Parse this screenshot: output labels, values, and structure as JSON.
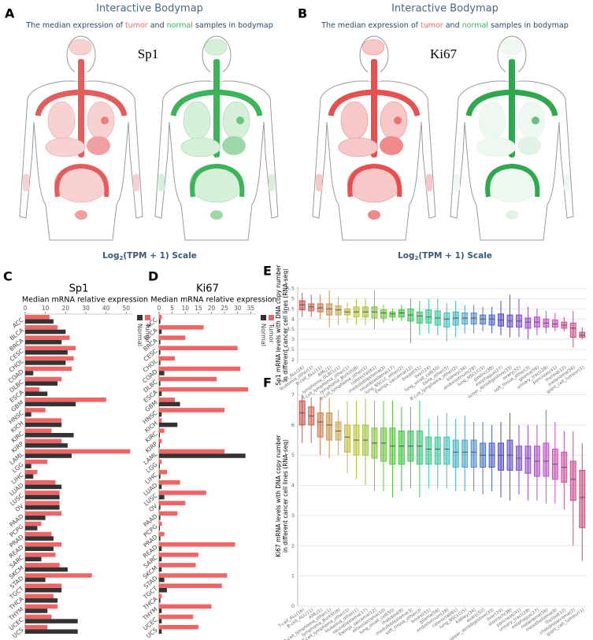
{
  "panels": [
    {
      "letter": "A",
      "title": "Interactive Bodymap",
      "subtitle": [
        "The median expression of ",
        "tumor",
        " and ",
        "normal",
        " samples in bodymap"
      ],
      "gene": "Sp1",
      "scale": [
        "Log",
        "2",
        "(TPM + 1) Scale"
      ]
    },
    {
      "letter": "B",
      "title": "Interactive Bodymap",
      "subtitle": [
        "The median expression of ",
        "tumor",
        " and ",
        "normal",
        " samples in bodymap"
      ],
      "gene": "Ki67",
      "scale": [
        "Log",
        "2",
        "(TPM + 1) Scale"
      ]
    }
  ],
  "chart_data": [
    {
      "type": "bar",
      "orientation": "horizontal",
      "letter": "C",
      "title": "Sp1",
      "subtitle": "Median mRNA relative expression",
      "categories": [
        "ACC",
        "BLCA",
        "BRCA",
        "CESC",
        "CHOL",
        "COAD",
        "DLBC",
        "ESCA",
        "GBM",
        "HNSC",
        "KICH",
        "KIRC",
        "KIRP",
        "LAML",
        "LGG",
        "LIHC",
        "LUAD",
        "LUSC",
        "OV",
        "PAAD",
        "PCPG",
        "PRAD",
        "READ",
        "SARC",
        "SKCM",
        "STAD",
        "TGCT",
        "THCA",
        "THYM",
        "UCEC",
        "UCS"
      ],
      "series": [
        {
          "name": "Tumor",
          "color": "#f06464",
          "values": [
            12,
            16,
            22,
            25,
            24,
            23,
            18,
            7,
            40,
            10,
            18,
            13,
            18,
            52,
            11,
            6,
            15,
            17,
            17,
            18,
            8,
            13,
            18,
            15,
            17,
            33,
            18,
            14,
            16,
            13,
            11
          ]
        },
        {
          "name": "Normal",
          "color": "#333333",
          "values": [
            14,
            20,
            18,
            21,
            20,
            4,
            16,
            11,
            25,
            3,
            18,
            24,
            21,
            23,
            3,
            4,
            18,
            17,
            17,
            10,
            6,
            14,
            14,
            8,
            21,
            10,
            18,
            16,
            11,
            26,
            26
          ]
        }
      ],
      "xlim": [
        0,
        53
      ],
      "xticks": [
        0,
        10,
        20,
        30,
        40,
        50
      ]
    },
    {
      "type": "bar",
      "orientation": "horizontal",
      "letter": "D",
      "title": "Ki67",
      "subtitle": "Median mRNA relative expression",
      "categories": [
        "ACC",
        "BLCA",
        "BRCA",
        "CESC",
        "CHOL",
        "COAD",
        "DLBC",
        "ESCA",
        "GBM",
        "HNSC",
        "KICH",
        "KIRC",
        "KIRP",
        "LAML",
        "LGG",
        "LIHC",
        "LUAD",
        "LUSC",
        "OV",
        "PAAD",
        "PCPG",
        "PRAD",
        "READ",
        "SARC",
        "SKCM",
        "STAD",
        "TGCT",
        "THCA",
        "THYM",
        "UCEC",
        "UCS"
      ],
      "series": [
        {
          "name": "Tumor",
          "color": "#f06464",
          "values": [
            1,
            17,
            10,
            30,
            6,
            31,
            22,
            34,
            6,
            25,
            1,
            2,
            1,
            25,
            1,
            3,
            8,
            18,
            10,
            7,
            1,
            2,
            29,
            15,
            14,
            26,
            24,
            1,
            20,
            13,
            15
          ]
        },
        {
          "name": "Normal",
          "color": "#333333",
          "values": [
            0.5,
            1,
            0.5,
            0.5,
            0.5,
            2,
            0.5,
            1,
            8,
            1,
            7,
            0.3,
            0.3,
            33,
            0.3,
            0.5,
            1,
            2,
            0.5,
            0.5,
            0.3,
            0.5,
            1,
            1,
            1,
            2,
            3,
            0.5,
            1,
            1,
            1
          ]
        }
      ],
      "xlim": [
        0,
        37
      ],
      "xticks": [
        0,
        5,
        10,
        15,
        20,
        25,
        30,
        35
      ]
    },
    {
      "type": "box",
      "letter": "E",
      "ylabel": [
        "Sp1 mRNA levels with DNA copy number",
        "in different cancer cell lines (RNA-seq)"
      ],
      "categories": [
        "T-cell_ALL(16)",
        "leukemia_other(1)",
        "B-cell_ALL(11)",
        "AML(1)",
        "lymphoma_DLBCL(1)",
        "T-cell_lymphoma_other(1)",
        "lymphoma_Burkitt(8)",
        "B-cell_lymphoma_other(1)",
        "colorectal(61)",
        "medulloblastoma(3)",
        "neuroblastoma(17)",
        "lung_NSCLC_other(2)",
        "Ewings_sarcoma(12)",
        "breast(51)",
        "liver(24)",
        "lung_small_cell(50)",
        "bone_other(5)",
        "B-cell_lymphoma_other(2)",
        "kidney(34)",
        "endometrium(28)",
        "lung_NSCLC(5)",
        "gastric(38)",
        "esophagus(27)",
        "upper_aerodigestive(33)",
        "ovary(52)",
        "soft_tissue_other(3)",
        "glioma(56)",
        "urinary_tract(28)",
        "pancreas(41)",
        "thyroid(12)",
        "melanoma(56)",
        "giant_cell_tumour(1)"
      ],
      "colors": [
        "hsl(0,55%,55%)",
        "hsl(11,55%,55%)",
        "hsl(22,55%,55%)",
        "hsl(33,55%,55%)",
        "hsl(44,55%,55%)",
        "hsl(55,55%,50%)",
        "hsl(66,55%,50%)",
        "hsl(77,55%,50%)",
        "hsl(88,55%,50%)",
        "hsl(99,55%,50%)",
        "hsl(110,55%,50%)",
        "hsl(121,55%,50%)",
        "hsl(132,55%,50%)",
        "hsl(143,55%,50%)",
        "hsl(154,55%,50%)",
        "hsl(165,55%,50%)",
        "hsl(176,55%,50%)",
        "hsl(187,55%,50%)",
        "hsl(198,55%,55%)",
        "hsl(209,55%,55%)",
        "hsl(220,55%,55%)",
        "hsl(231,55%,55%)",
        "hsl(242,55%,55%)",
        "hsl(253,55%,55%)",
        "hsl(264,55%,55%)",
        "hsl(275,55%,55%)",
        "hsl(286,55%,55%)",
        "hsl(297,55%,55%)",
        "hsl(308,55%,55%)",
        "hsl(319,55%,55%)",
        "hsl(330,55%,55%)",
        "hsl(341,55%,55%)"
      ],
      "low": [
        4.1,
        4.1,
        4.0,
        3.6,
        3.7,
        3.8,
        3.7,
        3.7,
        3.5,
        3.8,
        3.9,
        3.9,
        2.8,
        3.2,
        3.3,
        3.2,
        2.9,
        3.1,
        3.3,
        3.3,
        3.4,
        3.3,
        3.2,
        3.1,
        3.1,
        3.0,
        3.2,
        3.3,
        3.4,
        3.4,
        2.6,
        3.0
      ],
      "q1": [
        4.45,
        4.4,
        4.35,
        4.2,
        4.2,
        4.2,
        4.1,
        4.1,
        4.05,
        4.05,
        4.1,
        4.1,
        3.9,
        3.8,
        3.8,
        3.7,
        3.6,
        3.7,
        3.75,
        3.75,
        3.75,
        3.7,
        3.65,
        3.6,
        3.6,
        3.55,
        3.6,
        3.6,
        3.6,
        3.55,
        3.1,
        3.1
      ],
      "median": [
        4.7,
        4.6,
        4.55,
        4.5,
        4.45,
        4.35,
        4.35,
        4.35,
        4.35,
        4.3,
        4.25,
        4.3,
        4.2,
        4.15,
        4.1,
        4.05,
        4.0,
        4.05,
        4.05,
        4.05,
        4.0,
        4.0,
        3.95,
        3.9,
        3.9,
        3.85,
        3.85,
        3.8,
        3.75,
        3.7,
        3.55,
        3.2
      ],
      "q3": [
        4.9,
        4.75,
        4.75,
        4.75,
        4.65,
        4.5,
        4.6,
        4.6,
        4.6,
        4.45,
        4.35,
        4.45,
        4.5,
        4.35,
        4.45,
        4.4,
        4.3,
        4.35,
        4.3,
        4.3,
        4.2,
        4.2,
        4.25,
        4.2,
        4.2,
        4.05,
        4.1,
        4.0,
        3.95,
        3.85,
        3.8,
        3.35
      ],
      "high": [
        5.3,
        5.2,
        5.2,
        5.4,
        5.1,
        4.8,
        5.0,
        5.0,
        5.4,
        4.7,
        4.5,
        4.7,
        5.0,
        4.9,
        5.0,
        5.0,
        4.8,
        4.9,
        4.7,
        4.7,
        4.6,
        4.6,
        4.9,
        5.2,
        5.0,
        4.6,
        4.5,
        4.4,
        4.3,
        4.1,
        4.4,
        3.6
      ],
      "ylim": [
        1.8,
        5.6
      ],
      "yticks": [
        2,
        2.5,
        3,
        3.5,
        4,
        4.5,
        5,
        5.5
      ],
      "grid": true
    },
    {
      "type": "box",
      "letter": "F",
      "ylabel": [
        "Ki67 mRNA levels with DNA copy number",
        "in different cancer cell lines (RNA-seq)"
      ],
      "categories": [
        "T-cell_ALL(16)",
        "B-cell_ALL(11)",
        "AML(1)",
        "B-cell_lymphoma_other(1)",
        "lymphoma_Burkitt(8)",
        "T-cell_lymphoma_other(1)",
        "leukemia_other(1)",
        "neuroblastoma(17)",
        "Ewings_sarcoma(12)",
        "osteosarcoma(10)",
        "lung_small_cell(50)",
        "rhabdoid(8)",
        "medulloblastoma(3)",
        "soft_tissue_other(3)",
        "breast(51)",
        "glioma(56)",
        "endometrium(28)",
        "colorectal(61)",
        "lung_NSCLC(5)",
        "kidney(34)",
        "ovary(52)",
        "upper_aerodigestive(33)",
        "liver(24)",
        "stomach(38)",
        "pancreas(41)",
        "urinary_tract(28)",
        "esophagus(27)",
        "melanoma(56)",
        "mesothelioma(9)",
        "thyroid(12)",
        "chondrosarcoma(2)",
        "giant_cell_tumour(1)"
      ],
      "colors": [
        "hsl(0,55%,55%)",
        "hsl(11,55%,55%)",
        "hsl(22,55%,55%)",
        "hsl(33,55%,55%)",
        "hsl(44,55%,55%)",
        "hsl(55,55%,50%)",
        "hsl(66,55%,50%)",
        "hsl(77,55%,50%)",
        "hsl(88,55%,50%)",
        "hsl(99,55%,50%)",
        "hsl(110,55%,50%)",
        "hsl(121,55%,50%)",
        "hsl(132,55%,50%)",
        "hsl(143,55%,50%)",
        "hsl(154,55%,50%)",
        "hsl(165,55%,50%)",
        "hsl(176,55%,50%)",
        "hsl(187,55%,50%)",
        "hsl(198,55%,55%)",
        "hsl(209,55%,55%)",
        "hsl(220,55%,55%)",
        "hsl(231,55%,55%)",
        "hsl(242,55%,55%)",
        "hsl(253,55%,55%)",
        "hsl(264,55%,55%)",
        "hsl(275,55%,55%)",
        "hsl(286,55%,55%)",
        "hsl(297,55%,55%)",
        "hsl(308,55%,55%)",
        "hsl(319,55%,55%)",
        "hsl(330,55%,55%)",
        "hsl(341,55%,55%)"
      ],
      "low": [
        5.4,
        5.4,
        5.0,
        4.9,
        5.0,
        4.4,
        4.2,
        4.0,
        3.8,
        3.8,
        3.6,
        3.8,
        3.9,
        3.6,
        3.9,
        3.9,
        3.9,
        3.8,
        3.8,
        3.8,
        3.7,
        3.8,
        3.6,
        3.5,
        3.7,
        3.5,
        3.5,
        3.4,
        3.4,
        3.2,
        2.0,
        1.5
      ],
      "q1": [
        6.0,
        6.0,
        5.6,
        5.5,
        5.5,
        5.1,
        5.0,
        5.0,
        4.9,
        4.8,
        4.7,
        4.7,
        4.8,
        4.7,
        4.7,
        4.7,
        4.7,
        4.6,
        4.6,
        4.6,
        4.6,
        4.6,
        4.5,
        4.5,
        4.5,
        4.4,
        4.3,
        4.3,
        4.2,
        4.1,
        3.5,
        2.6
      ],
      "median": [
        6.4,
        6.3,
        6.1,
        6.0,
        5.8,
        5.6,
        5.5,
        5.5,
        5.4,
        5.4,
        5.3,
        5.3,
        5.3,
        5.3,
        5.2,
        5.2,
        5.2,
        5.1,
        5.1,
        5.1,
        5.0,
        5.0,
        5.0,
        5.0,
        4.9,
        4.9,
        4.8,
        4.8,
        4.7,
        4.6,
        4.2,
        3.6
      ],
      "q3": [
        6.8,
        6.6,
        6.4,
        6.4,
        6.1,
        6.0,
        6.0,
        6.0,
        5.9,
        5.9,
        5.9,
        5.8,
        5.8,
        5.8,
        5.6,
        5.6,
        5.6,
        5.5,
        5.5,
        5.5,
        5.4,
        5.4,
        5.4,
        5.5,
        5.3,
        5.3,
        5.3,
        5.4,
        5.2,
        5.1,
        4.8,
        4.5
      ],
      "high": [
        7.0,
        6.9,
        6.9,
        6.9,
        6.5,
        6.8,
        6.8,
        6.9,
        6.8,
        6.8,
        6.8,
        6.6,
        6.6,
        6.8,
        6.2,
        6.3,
        6.4,
        6.2,
        6.3,
        6.1,
        6.1,
        6.0,
        6.1,
        6.4,
        6.0,
        6.0,
        6.0,
        6.5,
        6.1,
        5.8,
        5.8,
        5.4
      ],
      "ylim": [
        0,
        7.3
      ],
      "yticks": [
        0,
        1,
        2,
        3,
        4,
        5,
        6,
        7
      ],
      "grid": true
    }
  ]
}
